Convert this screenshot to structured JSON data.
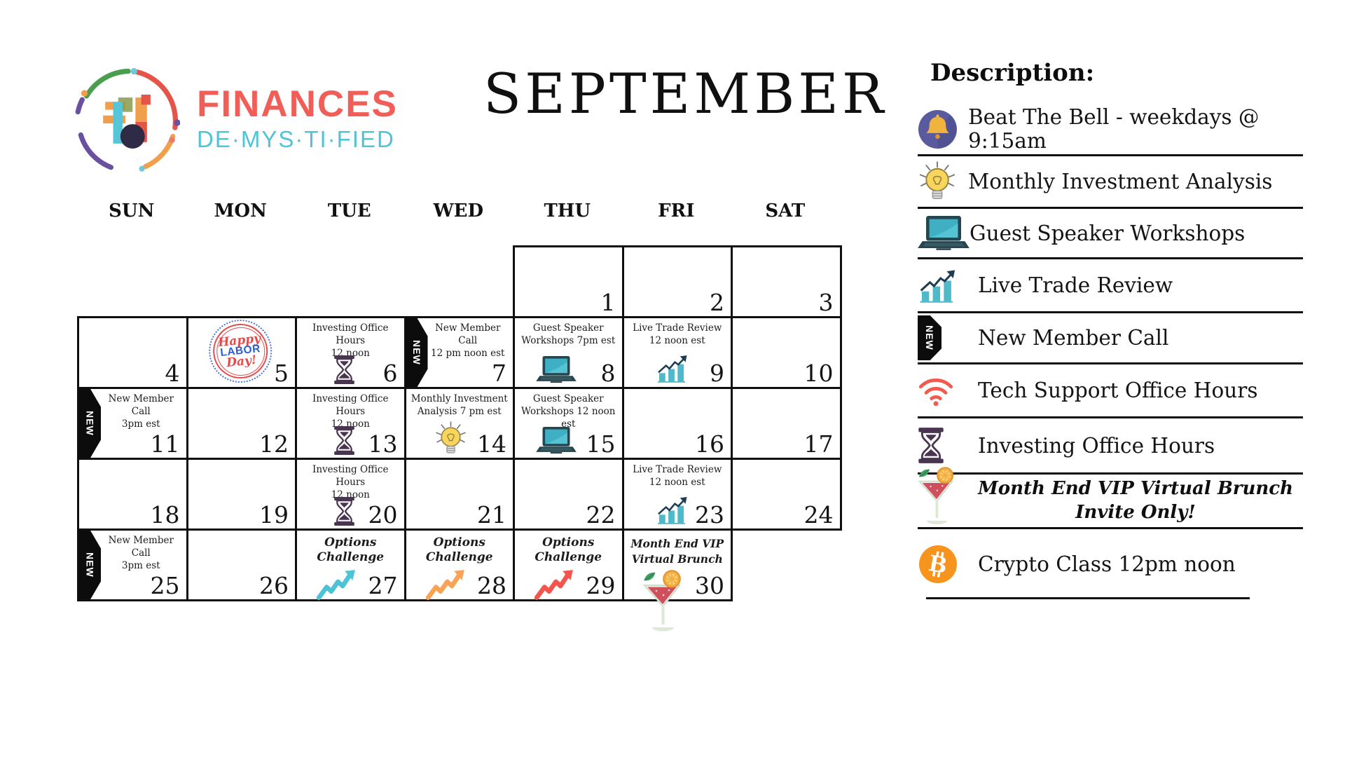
{
  "brand": {
    "logo_icon": "finances-demystified-logo",
    "name_line1": "FINANCES",
    "name_line2": "DE·MYS·TI·FIED"
  },
  "title": "SEPTEMBER",
  "colors": {
    "coral": "#f15e57",
    "light_blue": "#4fc4d9",
    "teal": "#4db9c9",
    "navy": "#1e3d52",
    "hourglass_purple": "#4a3550",
    "bulb_yellow": "#f8d65e",
    "bell_indigo": "#5a5b9e",
    "wifi_red": "#f25a50",
    "bitcoin_orange": "#f7941e",
    "zigzag_teal": "#4cc3d6",
    "zigzag_orange": "#f9a455",
    "zigzag_red": "#f3554d",
    "labor_red": "#e24b4b",
    "labor_blue": "#2e5ec9",
    "border_black": "#0f0f0f"
  },
  "calendar": {
    "day_headers": [
      "SUN",
      "MON",
      "TUE",
      "WED",
      "THU",
      "FRI",
      "SAT"
    ],
    "new_ribbon_label": "NEW",
    "cells": [
      {
        "day": 1,
        "row": 0,
        "col": 4
      },
      {
        "day": 2,
        "row": 0,
        "col": 5
      },
      {
        "day": 3,
        "row": 0,
        "col": 6
      },
      {
        "day": 4,
        "row": 1,
        "col": 0
      },
      {
        "day": 5,
        "row": 1,
        "col": 1,
        "sticker": {
          "name": "happy-labor-day-sticker",
          "lines": [
            "Happy",
            "LABOR",
            "Day!"
          ]
        }
      },
      {
        "day": 6,
        "row": 1,
        "col": 2,
        "event": {
          "lines": [
            "Investing Office Hours",
            "12 noon"
          ],
          "icon": "hourglass-icon"
        }
      },
      {
        "day": 7,
        "row": 1,
        "col": 3,
        "new_badge": true,
        "event": {
          "lines": [
            "New Member",
            "Call",
            "12 pm noon est"
          ]
        }
      },
      {
        "day": 8,
        "row": 1,
        "col": 4,
        "event": {
          "lines": [
            "Guest Speaker",
            "Workshops 7pm est"
          ],
          "icon": "laptop-icon"
        }
      },
      {
        "day": 9,
        "row": 1,
        "col": 5,
        "event": {
          "lines": [
            "Live Trade Review",
            "12 noon est"
          ],
          "icon": "chart-icon"
        }
      },
      {
        "day": 10,
        "row": 1,
        "col": 6
      },
      {
        "day": 11,
        "row": 2,
        "col": 0,
        "new_badge": true,
        "event": {
          "lines": [
            "New Member",
            "Call",
            "3pm est"
          ]
        }
      },
      {
        "day": 12,
        "row": 2,
        "col": 1
      },
      {
        "day": 13,
        "row": 2,
        "col": 2,
        "event": {
          "lines": [
            "Investing Office Hours",
            "12 noon"
          ],
          "icon": "hourglass-icon"
        }
      },
      {
        "day": 14,
        "row": 2,
        "col": 3,
        "event": {
          "lines": [
            "Monthly Investment",
            "Analysis 7 pm est"
          ],
          "icon": "bulb-icon"
        }
      },
      {
        "day": 15,
        "row": 2,
        "col": 4,
        "event": {
          "lines": [
            "Guest Speaker",
            "Workshops 12 noon est"
          ],
          "icon": "laptop-icon"
        }
      },
      {
        "day": 16,
        "row": 2,
        "col": 5
      },
      {
        "day": 17,
        "row": 2,
        "col": 6
      },
      {
        "day": 18,
        "row": 3,
        "col": 0
      },
      {
        "day": 19,
        "row": 3,
        "col": 1
      },
      {
        "day": 20,
        "row": 3,
        "col": 2,
        "event": {
          "lines": [
            "Investing Office Hours",
            "12 noon"
          ],
          "icon": "hourglass-icon"
        }
      },
      {
        "day": 21,
        "row": 3,
        "col": 3
      },
      {
        "day": 22,
        "row": 3,
        "col": 4
      },
      {
        "day": 23,
        "row": 3,
        "col": 5,
        "event": {
          "lines": [
            "Live Trade Review",
            "12 noon est"
          ],
          "icon": "chart-icon"
        }
      },
      {
        "day": 24,
        "row": 3,
        "col": 6
      },
      {
        "day": 25,
        "row": 4,
        "col": 0,
        "new_badge": true,
        "event": {
          "lines": [
            "New Member",
            "Call",
            "3pm est"
          ]
        }
      },
      {
        "day": 26,
        "row": 4,
        "col": 1
      },
      {
        "day": 27,
        "row": 4,
        "col": 2,
        "style": "options",
        "event": {
          "lines": [
            "Options",
            "Challenge"
          ],
          "icon": "zigzag-arrow-icon",
          "icon_color": "#4cc3d6"
        }
      },
      {
        "day": 28,
        "row": 4,
        "col": 3,
        "style": "options",
        "event": {
          "lines": [
            "Options",
            "Challenge"
          ],
          "icon": "zigzag-arrow-icon",
          "icon_color": "#f9a455"
        }
      },
      {
        "day": 29,
        "row": 4,
        "col": 4,
        "style": "options",
        "event": {
          "lines": [
            "Options",
            "Challenge"
          ],
          "icon": "zigzag-arrow-icon",
          "icon_color": "#f3554d"
        }
      },
      {
        "day": 30,
        "row": 4,
        "col": 5,
        "style": "script",
        "event": {
          "lines": [
            "Month End VIP",
            "Virtual Brunch"
          ],
          "icon": "cocktail-icon"
        }
      }
    ]
  },
  "legend": {
    "heading": "Description:",
    "items": [
      {
        "icon": "bell-icon",
        "label": "Beat The Bell - weekdays @ 9:15am"
      },
      {
        "icon": "bulb-icon",
        "label": "Monthly Investment Analysis"
      },
      {
        "icon": "laptop-icon",
        "label": "Guest Speaker Workshops"
      },
      {
        "icon": "chart-icon",
        "label": "Live Trade Review"
      },
      {
        "icon": "new-ribbon-icon",
        "label": "New Member Call"
      },
      {
        "icon": "wifi-icon",
        "label": "Tech Support Office Hours"
      },
      {
        "icon": "hourglass-icon",
        "label": "Investing Office Hours"
      },
      {
        "icon": "cocktail-icon",
        "label": "Month End VIP Virtual Brunch",
        "label2": "Invite Only!",
        "script": true
      },
      {
        "icon": "bitcoin-icon",
        "label": "Crypto Class 12pm noon"
      }
    ]
  }
}
